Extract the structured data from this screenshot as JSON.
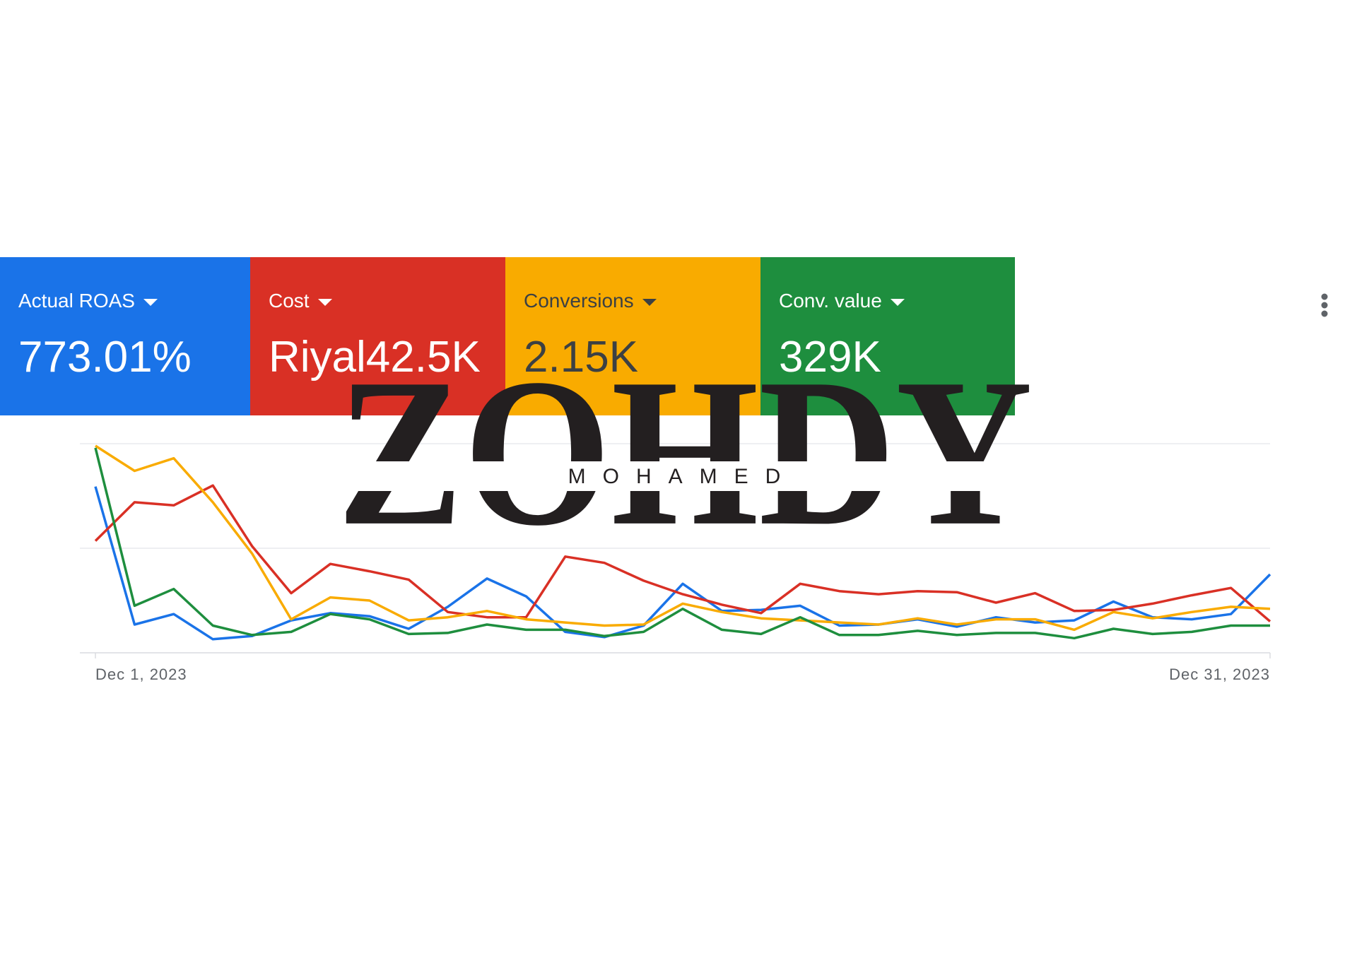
{
  "metrics": [
    {
      "label": "Actual ROAS",
      "value": "773.01%"
    },
    {
      "label": "Cost",
      "value": "Riyal42.5K"
    },
    {
      "label": "Conversions",
      "value": "2.15K"
    },
    {
      "label": "Conv. value",
      "value": "329K"
    }
  ],
  "watermark": {
    "title": "ZOHDY",
    "subtitle": "MOHAMED"
  },
  "chart_data": {
    "type": "line",
    "x": [
      "Dec 1, 2023",
      null,
      null,
      null,
      null,
      null,
      null,
      null,
      null,
      null,
      null,
      null,
      null,
      null,
      null,
      null,
      null,
      null,
      null,
      null,
      null,
      null,
      null,
      null,
      null,
      null,
      null,
      null,
      null,
      null,
      "Dec 31, 2023"
    ],
    "series": [
      {
        "color": "#1a73e8",
        "values": [
          1.59,
          0.27,
          0.37,
          0.13,
          0.16,
          0.31,
          0.38,
          0.35,
          0.23,
          0.44,
          0.71,
          0.54,
          0.2,
          0.15,
          0.26,
          0.66,
          0.4,
          0.41,
          0.45,
          0.26,
          0.27,
          0.32,
          0.25,
          0.34,
          0.29,
          0.31,
          0.49,
          0.34,
          0.32,
          0.37,
          0.75
        ]
      },
      {
        "color": "#d93025",
        "values": [
          1.07,
          1.44,
          1.41,
          1.6,
          1.02,
          0.57,
          0.85,
          0.78,
          0.7,
          0.39,
          0.34,
          0.34,
          0.92,
          0.86,
          0.69,
          0.56,
          0.46,
          0.38,
          0.66,
          0.59,
          0.56,
          0.59,
          0.58,
          0.48,
          0.57,
          0.4,
          0.41,
          0.47,
          0.55,
          0.62,
          0.3
        ]
      },
      {
        "color": "#f9ab00",
        "values": [
          1.98,
          1.74,
          1.86,
          1.44,
          0.95,
          0.32,
          0.53,
          0.5,
          0.31,
          0.34,
          0.4,
          0.32,
          0.29,
          0.26,
          0.27,
          0.47,
          0.39,
          0.33,
          0.31,
          0.29,
          0.27,
          0.33,
          0.27,
          0.32,
          0.32,
          0.22,
          0.39,
          0.33,
          0.39,
          0.44,
          0.42
        ]
      },
      {
        "color": "#1e8e3e",
        "values": [
          1.96,
          0.45,
          0.61,
          0.26,
          0.17,
          0.2,
          0.37,
          0.32,
          0.18,
          0.19,
          0.27,
          0.22,
          0.22,
          0.16,
          0.2,
          0.42,
          0.22,
          0.18,
          0.34,
          0.17,
          0.17,
          0.21,
          0.17,
          0.19,
          0.19,
          0.14,
          0.23,
          0.18,
          0.2,
          0.26,
          0.26
        ]
      }
    ],
    "ylim": [
      0,
      2
    ],
    "yticks": [
      0,
      1,
      2
    ],
    "grid": true
  }
}
